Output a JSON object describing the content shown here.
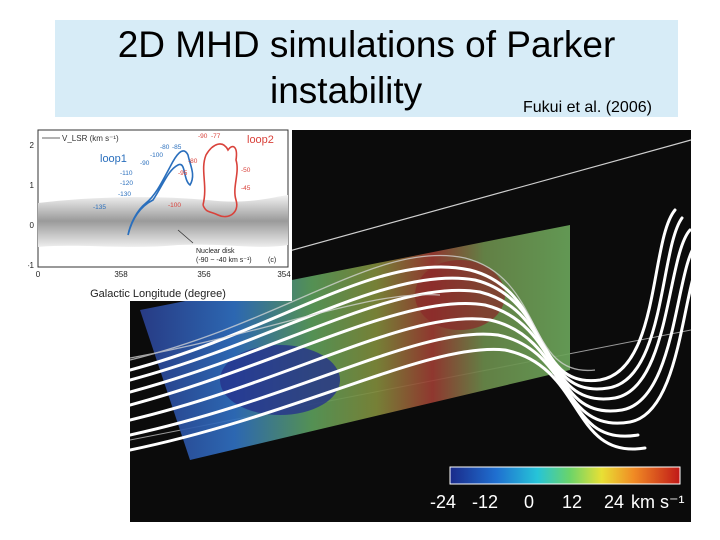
{
  "slide": {
    "title_line1": "2D MHD simulations of Parker",
    "title_line2": "instability",
    "citation": "Fukui et al. (2006)"
  },
  "inset": {
    "legend_label": "V_LSR (km s⁻¹)",
    "loop1_label": "loop1",
    "loop2_label": "loop2",
    "loop1_velocities": [
      "-100",
      "-90",
      "-110",
      "-120",
      "-130",
      "-135",
      "-80",
      "-85"
    ],
    "loop2_velocities": [
      "-90",
      "-77",
      "-80",
      "-95",
      "-50",
      "-45",
      "-100"
    ],
    "annotation_line1": "Nuclear disk",
    "annotation_line2": "(-90 ~ -40 km s⁻¹)",
    "panel_tag": "(c)",
    "y_ticks": [
      "2",
      "1",
      "0",
      "-1"
    ],
    "x_ticks": [
      "0",
      "358",
      "356",
      "354"
    ],
    "x_axis_label": "Galactic Longitude (degree)",
    "colors": {
      "loop1": "#2a6fbd",
      "loop2": "#d9423b"
    }
  },
  "colorbar": {
    "ticks": [
      "-24",
      "-12",
      "0",
      "12",
      "24"
    ],
    "unit": "km s⁻¹"
  }
}
